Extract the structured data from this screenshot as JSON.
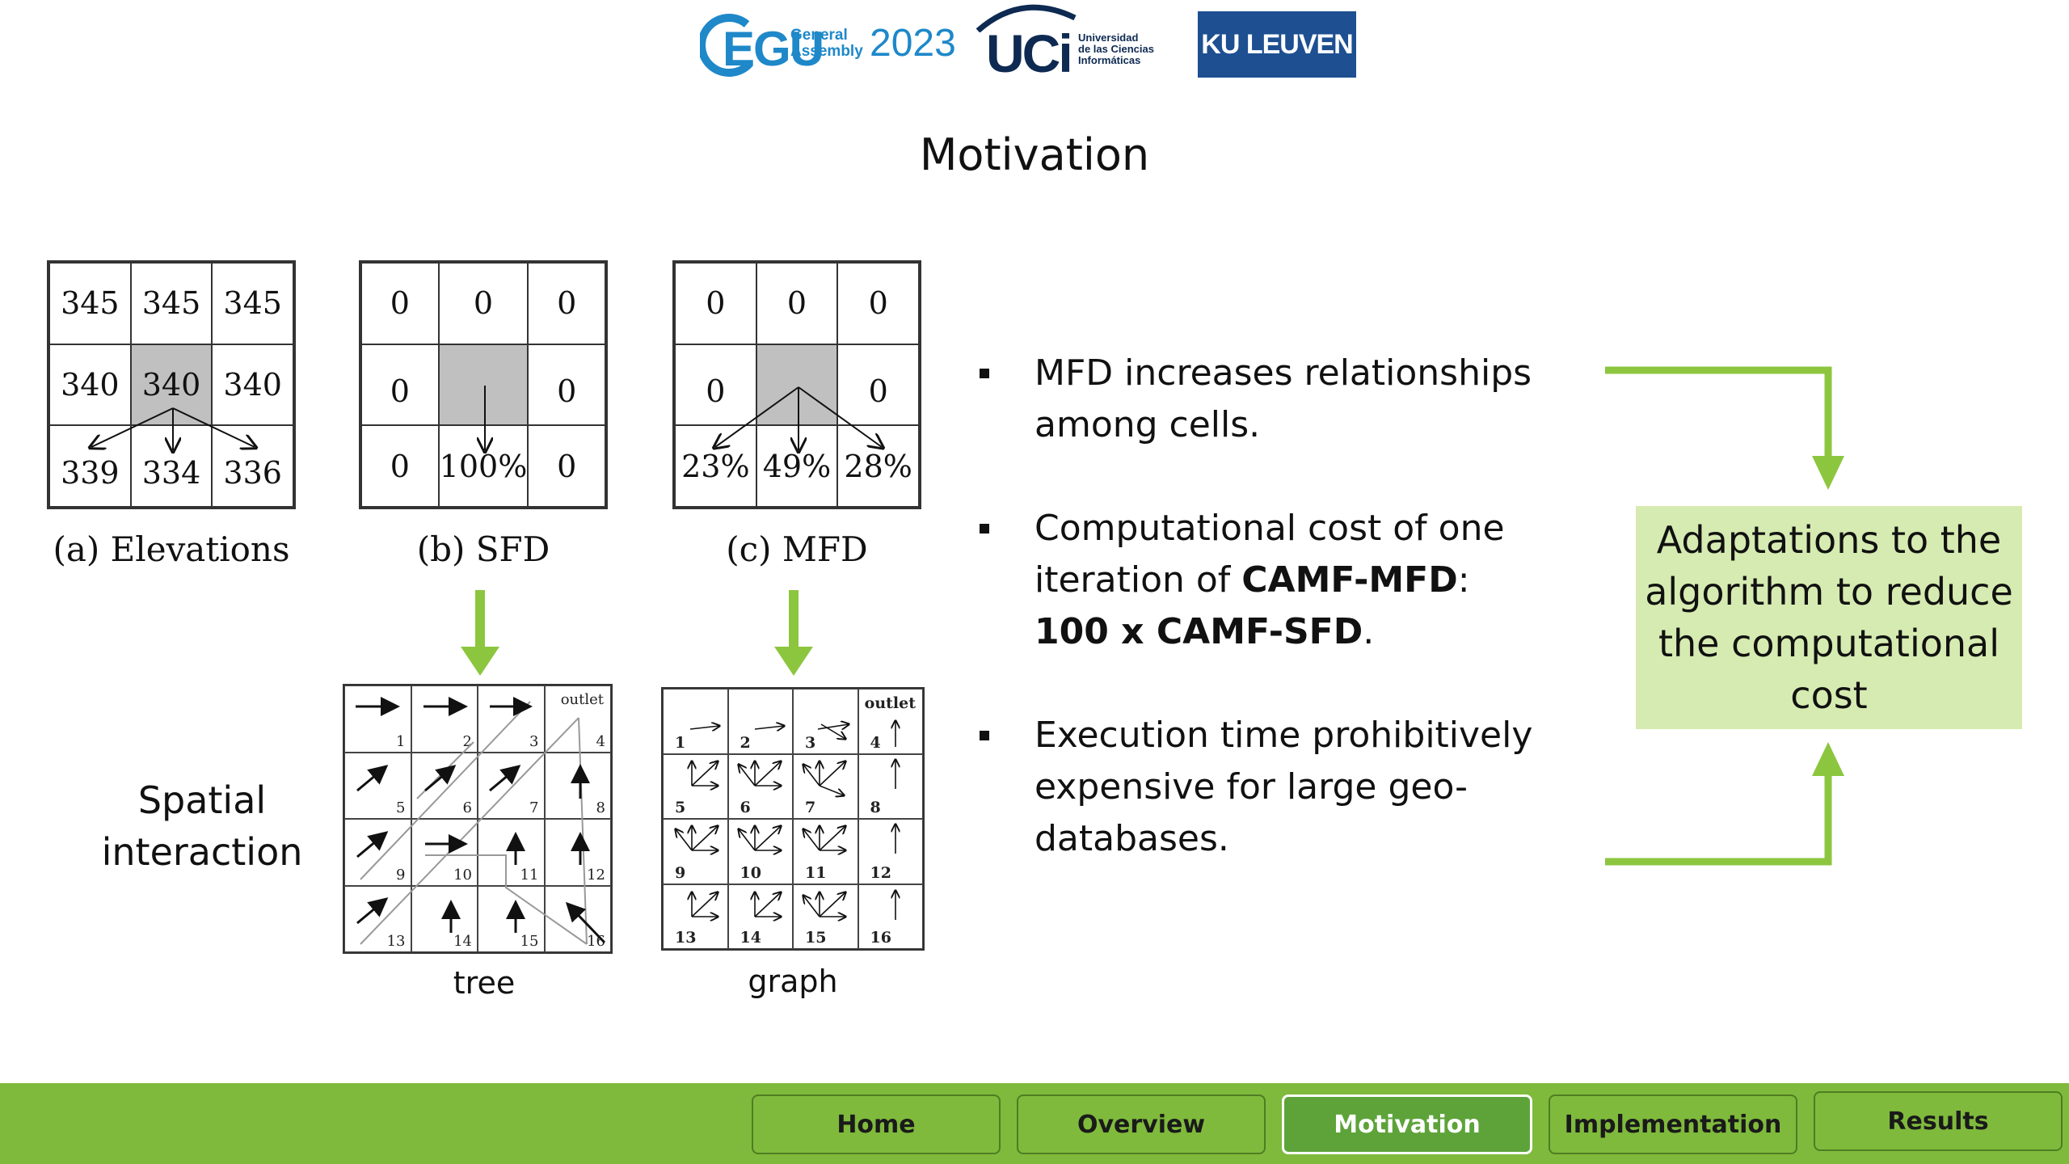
{
  "logos": {
    "egu": {
      "main": "EGU",
      "sub1": "General",
      "sub2": "Assembly",
      "year": "2023"
    },
    "uci": {
      "main": "UCi",
      "sub1": "Universidad",
      "sub2": "de las Ciencias",
      "sub3": "Informáticas"
    },
    "ku": "KU LEUVEN"
  },
  "slide": {
    "title": "Motivation"
  },
  "figures": {
    "elevations": {
      "caption": "(a) Elevations",
      "cells": [
        "345",
        "345",
        "345",
        "340",
        "340",
        "340",
        "339",
        "334",
        "336"
      ]
    },
    "sfd": {
      "caption": "(b) SFD",
      "cells": [
        "0",
        "0",
        "0",
        "0",
        "",
        "0",
        "0",
        "100%",
        "0"
      ]
    },
    "mfd": {
      "caption": "(c) MFD",
      "cells": [
        "0",
        "0",
        "0",
        "0",
        "",
        "0",
        "23%",
        "49%",
        "28%"
      ]
    },
    "tree": {
      "caption": "tree",
      "outlet": "outlet",
      "numbers": [
        "1",
        "2",
        "3",
        "4",
        "5",
        "6",
        "7",
        "8",
        "9",
        "10",
        "11",
        "12",
        "13",
        "14",
        "15",
        "16"
      ]
    },
    "graph": {
      "caption": "graph",
      "outlet": "outlet",
      "numbers": [
        "1",
        "2",
        "3",
        "4",
        "5",
        "6",
        "7",
        "8",
        "9",
        "10",
        "11",
        "12",
        "13",
        "14",
        "15",
        "16"
      ]
    }
  },
  "side_label": {
    "line1": "Spatial",
    "line2": "interaction"
  },
  "bullets": {
    "b1": {
      "text": "MFD increases relationships among cells."
    },
    "b2": {
      "pre": "Computational cost of one iteration of ",
      "bold1": "CAMF-MFD",
      "mid": ":",
      "bold2": "100 x CAMF-SFD",
      "post": "."
    },
    "b3": {
      "text": "Execution time prohibitively expensive for large geo-databases."
    }
  },
  "adaptation_box": "Adaptations to the algorithm to reduce the computational cost",
  "nav": [
    {
      "label": "Home",
      "active": false
    },
    {
      "label": "Overview",
      "active": false
    },
    {
      "label": "Motivation",
      "active": true
    },
    {
      "label": "Implementation",
      "active": false
    },
    {
      "label": "Results",
      "active": false
    }
  ],
  "colors": {
    "accent_green": "#7fba3c",
    "arrow_green": "#8cc63f",
    "box_green": "#d6ebb1",
    "active_nav": "#5da33a"
  }
}
